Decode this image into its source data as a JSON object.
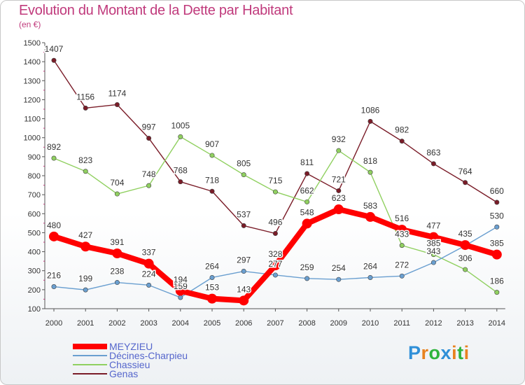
{
  "header": {
    "title": "Evolution du Montant de la Dette par Habitant",
    "unit": "(en €)"
  },
  "logo": {
    "text": "Proxiti",
    "letter_colors": [
      "#2f8fd8",
      "#e8821f",
      "#2fb43c",
      "#2f8fd8",
      "#e8821f",
      "#2fb43c",
      "#e8821f"
    ]
  },
  "chart_data": {
    "type": "line",
    "title": "Evolution du Montant de la Dette par Habitant",
    "ylabel": "(en €)",
    "ylim": [
      100,
      1500
    ],
    "yticks": [
      100,
      200,
      300,
      400,
      500,
      600,
      700,
      800,
      900,
      1000,
      1100,
      1200,
      1300,
      1400,
      1500
    ],
    "grid": false,
    "legend_position": "bottom-left",
    "x": [
      "2000",
      "2001",
      "2002",
      "2003",
      "2004",
      "2005",
      "2006",
      "2007",
      "2008",
      "2009",
      "2010",
      "2011",
      "2012",
      "2013",
      "2014"
    ],
    "series": [
      {
        "name": "MEYZIEU",
        "color": "#ff0000",
        "emphasis": true,
        "values": [
          480,
          427,
          391,
          337,
          194,
          153,
          143,
          328,
          548,
          623,
          583,
          516,
          477,
          435,
          385
        ]
      },
      {
        "name": "Décines-Charpieu",
        "color": "#6a9fd0",
        "emphasis": false,
        "values": [
          216,
          199,
          238,
          224,
          159,
          264,
          297,
          277,
          259,
          254,
          264,
          272,
          343,
          432,
          530
        ]
      },
      {
        "name": "Chassieu",
        "color": "#90d060",
        "emphasis": false,
        "values": [
          892,
          823,
          704,
          748,
          1005,
          907,
          805,
          715,
          662,
          932,
          818,
          433,
          385,
          306,
          186
        ]
      },
      {
        "name": "Genas",
        "color": "#7a1c28",
        "emphasis": false,
        "values": [
          1407,
          1156,
          1174,
          997,
          768,
          718,
          537,
          496,
          811,
          721,
          1086,
          982,
          863,
          764,
          660
        ]
      }
    ]
  }
}
